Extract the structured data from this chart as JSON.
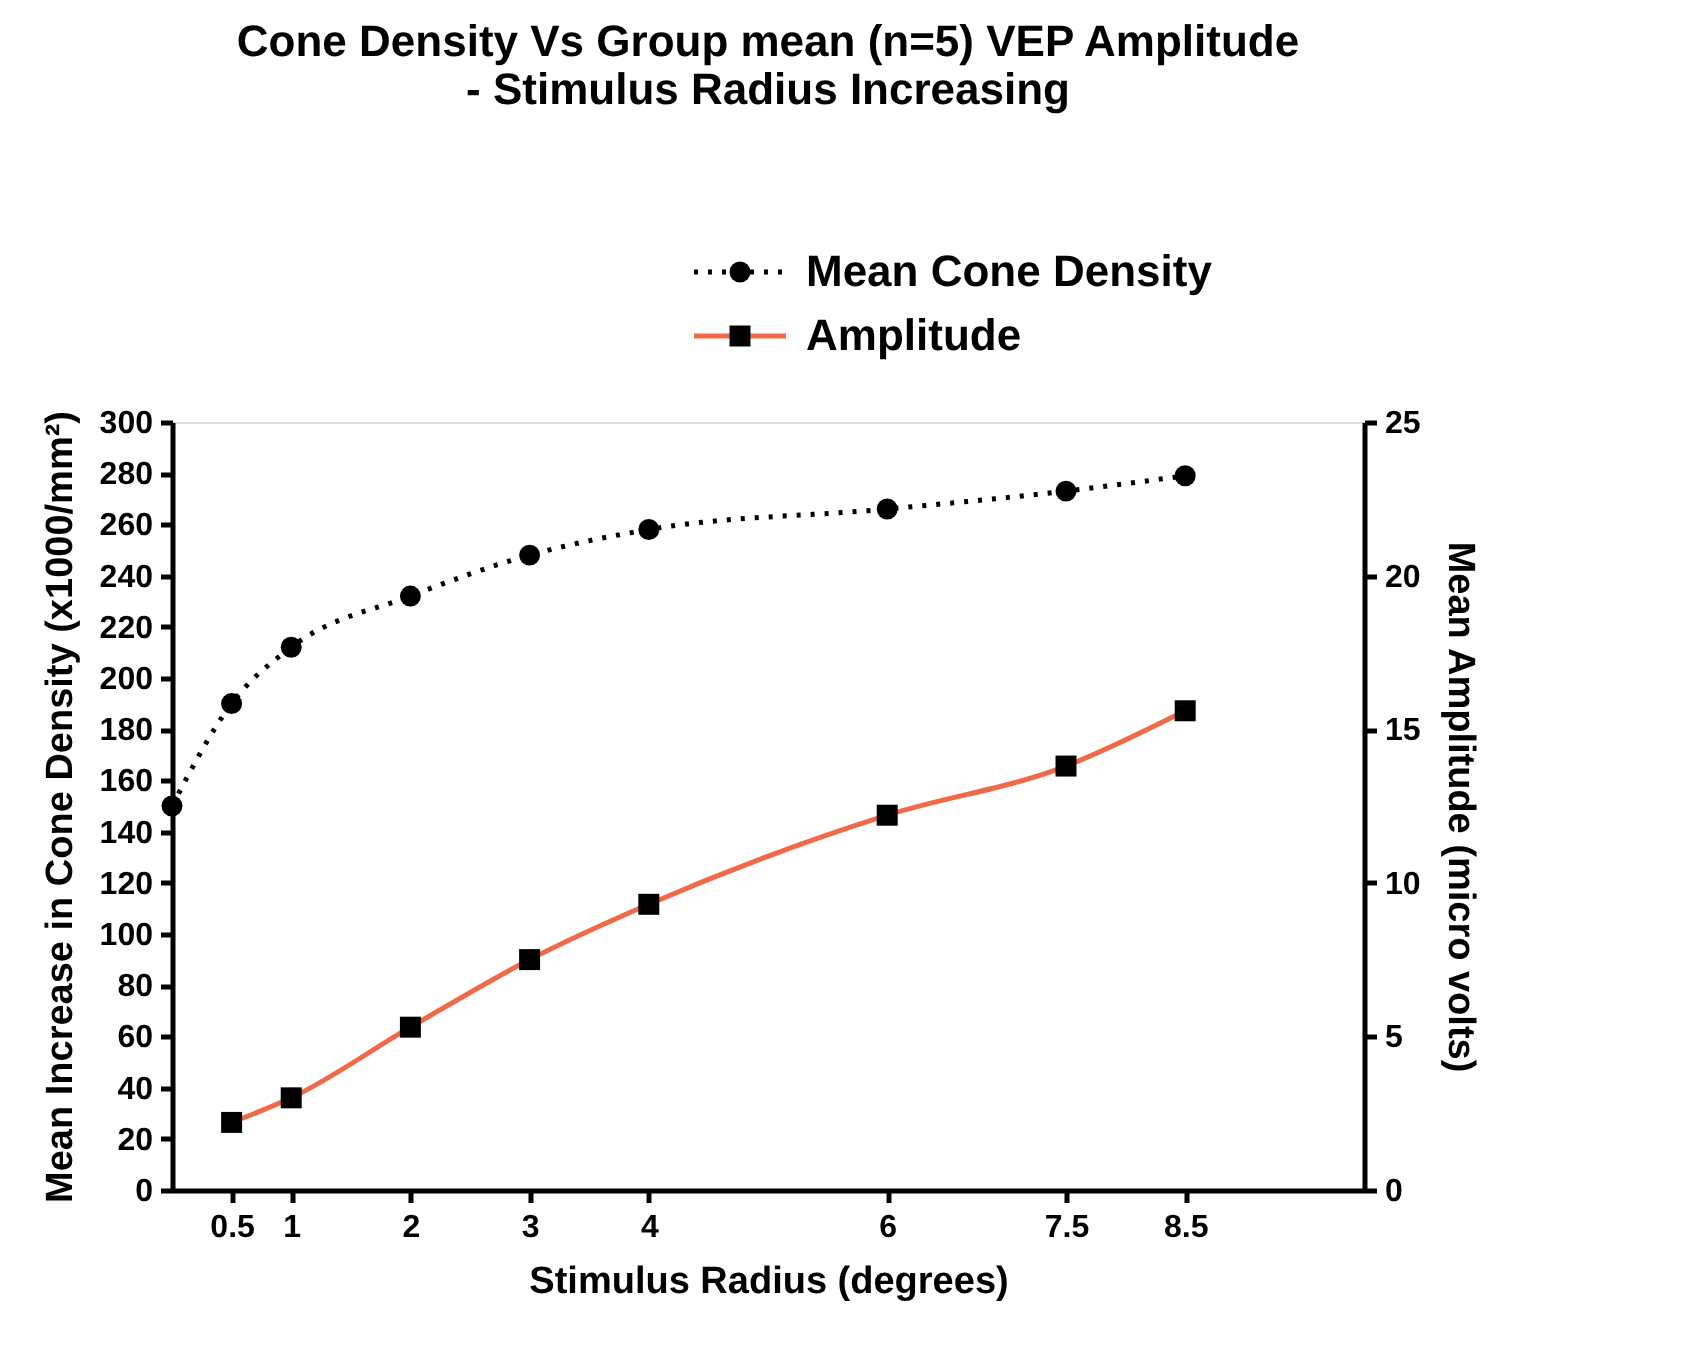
{
  "chart_data": {
    "type": "line",
    "title": "Cone Density Vs  Group mean (n=5) VEP Amplitude\n- Stimulus Radius Increasing",
    "xlabel": "Stimulus Radius (degrees)",
    "ylabel": "Mean Increase in Cone Density (x1000/mm²)",
    "y2label": "Mean Amplitude (micro volts)",
    "x": [
      0,
      0.5,
      1,
      2,
      3,
      4,
      6,
      7.5,
      8.5
    ],
    "series": [
      {
        "name": "Mean Cone Density",
        "color": "#000000",
        "line_style": "dotted",
        "marker": "circle",
        "values": [
          150,
          190,
          212,
          232,
          248,
          258,
          266,
          273,
          279
        ]
      },
      {
        "name": "Amplitude",
        "color": "#f06a4a",
        "line_style": "solid",
        "marker": "square",
        "axis": "y2",
        "x": [
          0.5,
          1,
          2,
          3,
          4,
          6,
          7.5,
          8.5
        ],
        "values": [
          2.2,
          3.0,
          5.3,
          7.5,
          9.3,
          12.2,
          13.8,
          15.6
        ]
      }
    ],
    "xlim": [
      0,
      10
    ],
    "xticks": [
      0.5,
      1,
      2,
      3,
      4,
      6,
      7.5,
      8.5
    ],
    "ylim": [
      0,
      300
    ],
    "yticks": [
      0,
      20,
      40,
      60,
      80,
      100,
      120,
      140,
      160,
      180,
      200,
      220,
      240,
      260,
      280,
      300
    ],
    "y2lim": [
      0,
      25
    ],
    "y2ticks": [
      0,
      5,
      10,
      15,
      20,
      25
    ],
    "legend": "top right",
    "grid": false
  }
}
